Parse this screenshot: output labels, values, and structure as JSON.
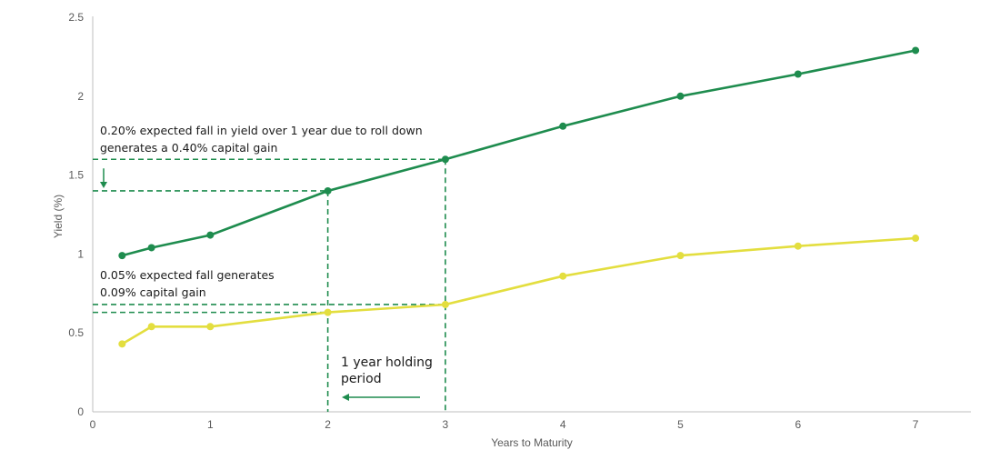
{
  "chart_data": {
    "type": "line",
    "xlabel": "Years to Maturity",
    "ylabel": "Yield (%)",
    "xlim": [
      0,
      7.5
    ],
    "ylim": [
      0,
      2.5
    ],
    "x_ticks": [
      "0",
      "1",
      "2",
      "3",
      "4",
      "5",
      "6",
      "7"
    ],
    "y_ticks": [
      "0",
      "0.5",
      "1",
      "1.5",
      "2",
      "2.5"
    ],
    "grid": false,
    "colors": {
      "series_1": "#1e8c4e",
      "series_2": "#e3de3f",
      "annotation": "#1e8c4e"
    },
    "series": [
      {
        "x": [
          0.25,
          0.5,
          1,
          2,
          3,
          4,
          5,
          6,
          7
        ],
        "values": [
          0.99,
          1.04,
          1.12,
          1.4,
          1.6,
          1.81,
          2.0,
          2.14,
          2.29
        ]
      },
      {
        "x": [
          0.25,
          0.5,
          1,
          2,
          3,
          4,
          5,
          6,
          7
        ],
        "values": [
          0.43,
          0.54,
          0.54,
          0.63,
          0.68,
          0.86,
          0.99,
          1.05,
          1.1
        ]
      }
    ],
    "annotations": {
      "green_line1": "0.20% expected fall in yield over 1 year due to roll down",
      "green_line2": "generates a 0.40% capital gain",
      "yellow_line1": "0.05% expected fall generates",
      "yellow_line2": "0.09% capital gain",
      "holding_line1": "1 year holding",
      "holding_line2": "period"
    }
  }
}
